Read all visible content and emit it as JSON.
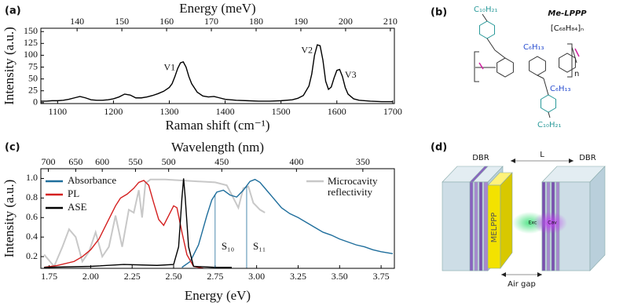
{
  "panels": [
    "(a)",
    "(b)",
    "(c)",
    "(d)"
  ],
  "chart_data": [
    {
      "type": "line",
      "x_label": "Raman shift (cm⁻¹)",
      "y_label": "Intensity (a.u.)",
      "x2_label": "Energy (meV)",
      "x": [
        1070,
        1080,
        1090,
        1100,
        1110,
        1120,
        1130,
        1140,
        1150,
        1160,
        1170,
        1180,
        1190,
        1200,
        1210,
        1220,
        1230,
        1240,
        1250,
        1260,
        1270,
        1280,
        1290,
        1300,
        1305,
        1310,
        1315,
        1320,
        1325,
        1330,
        1335,
        1340,
        1350,
        1360,
        1370,
        1380,
        1390,
        1400,
        1420,
        1440,
        1460,
        1480,
        1500,
        1520,
        1530,
        1540,
        1550,
        1555,
        1560,
        1565,
        1570,
        1575,
        1580,
        1585,
        1590,
        1595,
        1600,
        1605,
        1610,
        1615,
        1620,
        1630,
        1640,
        1660,
        1680,
        1700
      ],
      "values": [
        3,
        3,
        4,
        4,
        5,
        7,
        10,
        13,
        10,
        6,
        5,
        5,
        6,
        8,
        12,
        18,
        16,
        10,
        10,
        12,
        15,
        19,
        24,
        32,
        40,
        55,
        72,
        84,
        86,
        75,
        55,
        40,
        22,
        14,
        12,
        13,
        10,
        7,
        5,
        4,
        3,
        3,
        4,
        6,
        9,
        15,
        35,
        60,
        100,
        122,
        120,
        90,
        45,
        28,
        33,
        52,
        68,
        70,
        55,
        32,
        18,
        8,
        5,
        3,
        2,
        2
      ],
      "color": "#000000",
      "xlim": [
        1070,
        1703
      ],
      "ylim": [
        -2,
        157
      ],
      "xticks": [
        1100,
        1200,
        1300,
        1400,
        1500,
        1600,
        1700
      ],
      "yticks": [
        0,
        25,
        50,
        75,
        100,
        125,
        150
      ],
      "x2lim": [
        131.9,
        210.9
      ],
      "x2ticks": [
        140,
        150,
        160,
        170,
        180,
        190,
        200,
        210
      ],
      "peaks": [
        {
          "label": "V1",
          "x": 1322
        },
        {
          "label": "V2",
          "x": 1568
        },
        {
          "label": "V3",
          "x": 1603
        }
      ]
    },
    {
      "type": "line",
      "x_label": "Energy (eV)",
      "y_label": "Intensity (a.u.)",
      "x2_label": "Wavelength (nm)",
      "series": [
        {
          "name": "Absorbance",
          "color": "#1f6e9c",
          "x": [
            2.55,
            2.6,
            2.65,
            2.7,
            2.73,
            2.76,
            2.8,
            2.84,
            2.88,
            2.92,
            2.96,
            2.99,
            3.02,
            3.06,
            3.1,
            3.15,
            3.2,
            3.25,
            3.3,
            3.35,
            3.4,
            3.45,
            3.5,
            3.55,
            3.6,
            3.65,
            3.7,
            3.75,
            3.82
          ],
          "values": [
            0.09,
            0.15,
            0.32,
            0.62,
            0.78,
            0.86,
            0.88,
            0.83,
            0.81,
            0.88,
            0.97,
            0.99,
            0.96,
            0.88,
            0.8,
            0.7,
            0.64,
            0.6,
            0.55,
            0.5,
            0.45,
            0.42,
            0.38,
            0.35,
            0.32,
            0.3,
            0.27,
            0.25,
            0.23
          ]
        },
        {
          "name": "PL",
          "color": "#d42020",
          "x": [
            1.72,
            1.8,
            1.9,
            1.95,
            2.0,
            2.05,
            2.1,
            2.15,
            2.18,
            2.22,
            2.26,
            2.29,
            2.32,
            2.35,
            2.38,
            2.41,
            2.44,
            2.47,
            2.5,
            2.52,
            2.55,
            2.58,
            2.62,
            2.68
          ],
          "values": [
            0.09,
            0.11,
            0.15,
            0.2,
            0.27,
            0.38,
            0.55,
            0.72,
            0.8,
            0.84,
            0.9,
            0.96,
            0.98,
            0.93,
            0.75,
            0.58,
            0.52,
            0.62,
            0.72,
            0.7,
            0.45,
            0.22,
            0.1,
            0.08
          ]
        },
        {
          "name": "ASE",
          "color": "#000000",
          "x": [
            1.72,
            2.0,
            2.2,
            2.4,
            2.5,
            2.53,
            2.55,
            2.56,
            2.57,
            2.59,
            2.62,
            2.75,
            2.85
          ],
          "values": [
            0.09,
            0.1,
            0.12,
            0.11,
            0.12,
            0.3,
            0.8,
            1.0,
            0.8,
            0.3,
            0.1,
            0.09,
            0.09
          ]
        },
        {
          "name": "Microcavity reflectivity",
          "color": "#c8c8c8",
          "x": [
            1.72,
            1.78,
            1.83,
            1.87,
            1.91,
            1.95,
            1.99,
            2.03,
            2.07,
            2.11,
            2.15,
            2.19,
            2.23,
            2.26,
            2.29,
            2.31,
            2.33,
            2.36,
            2.45,
            2.55,
            2.65,
            2.75,
            2.82,
            2.86,
            2.89,
            2.92,
            2.95,
            2.98,
            3.02,
            3.05
          ],
          "values": [
            0.22,
            0.1,
            0.3,
            0.48,
            0.4,
            0.15,
            0.25,
            0.45,
            0.2,
            0.3,
            0.62,
            0.3,
            0.68,
            0.65,
            0.88,
            0.6,
            0.95,
            0.99,
            0.99,
            0.98,
            0.97,
            0.96,
            0.93,
            0.8,
            0.7,
            0.9,
            0.92,
            0.75,
            0.68,
            0.65
          ]
        }
      ],
      "xlim": [
        1.7,
        3.83
      ],
      "ylim": [
        0.08,
        1.1
      ],
      "xticks": [
        1.75,
        {
          "value": 2,
          "label": "2.00"
        },
        2.25,
        {
          "value": 2.5,
          "label": "2.50"
        },
        2.75,
        {
          "value": 3,
          "label": "3.00"
        },
        3.25,
        {
          "value": 3.5,
          "label": "3.50"
        },
        3.75
      ],
      "yticks": [
        0.2,
        0.4,
        0.6,
        0.8,
        {
          "value": 1,
          "label": "1.0"
        }
      ],
      "x2ticks": [
        {
          "value": 1.745,
          "label": "700"
        },
        {
          "value": 1.91,
          "label": "650"
        },
        {
          "value": 2.07,
          "label": "600"
        },
        {
          "value": 2.27,
          "label": "550"
        },
        {
          "value": 2.47,
          "label": "500"
        },
        {
          "value": 2.79,
          "label": "450"
        },
        {
          "value": 3.24,
          "label": "400"
        },
        {
          "value": 3.64,
          "label": "350"
        }
      ],
      "markers": [
        {
          "label": "S₁₀",
          "x": 2.75
        },
        {
          "label": "S₁₁",
          "x": 2.94
        }
      ]
    }
  ],
  "structure": {
    "name": "Me-LPPP",
    "formula": "[C₆₈H₈₄]ₙ",
    "side_chains": [
      "C₁₀H₂₁",
      "C₁₀H₂₁",
      "C₆H₁₃",
      "C₆H₁₃"
    ],
    "repeat": "n"
  },
  "diagram": {
    "left_mirror": "DBR",
    "right_mirror": "DBR",
    "length": "L",
    "layer": "MELPPP",
    "exciton": "Exc",
    "cavity": "Cav",
    "gap": "Air gap"
  }
}
